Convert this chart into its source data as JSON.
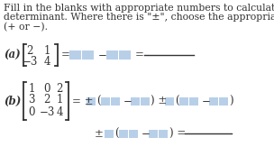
{
  "bg_color": "#ffffff",
  "text_color": "#333333",
  "blank_color": "#b8cfe8",
  "title_line1": "Fill in the blanks with appropriate numbers to calculate the",
  "title_line2": "determinant. Where there is \"±\", choose the appropriate sign",
  "title_line3": "(+ or −).",
  "label_a": "(a)",
  "label_b": "(b)",
  "mat_a_r1": [
    "2",
    "1"
  ],
  "mat_a_r2": [
    "−3",
    "4"
  ],
  "mat_b_r1": [
    "1",
    "0",
    "2"
  ],
  "mat_b_r2": [
    "3",
    "2",
    "1"
  ],
  "mat_b_r3": [
    "0",
    "−3",
    "4"
  ],
  "fs_title": 7.8,
  "fs_math": 8.5,
  "fs_label": 8.5
}
